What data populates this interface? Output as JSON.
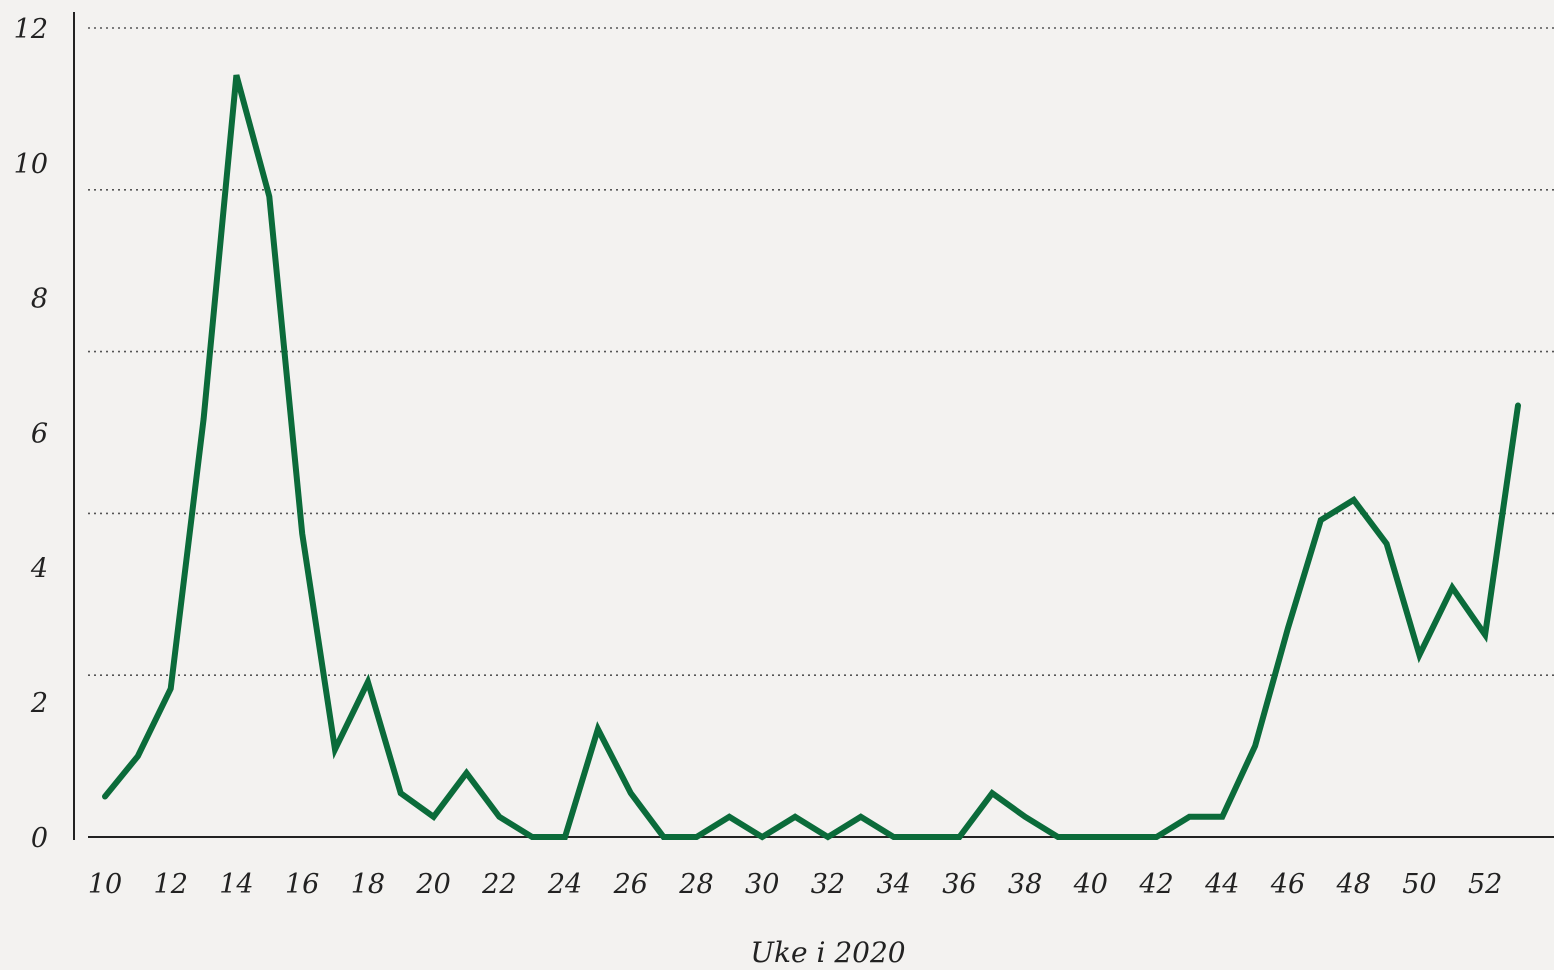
{
  "chart_data": {
    "type": "line",
    "title": "",
    "xlabel": "Uke i 2020",
    "ylabel": "",
    "xlim": [
      10,
      53
    ],
    "ylim": [
      0,
      12
    ],
    "yticks": [
      0,
      2,
      4,
      6,
      8,
      10,
      12
    ],
    "xticks": [
      10,
      12,
      14,
      16,
      18,
      20,
      22,
      24,
      26,
      28,
      30,
      32,
      34,
      36,
      38,
      40,
      42,
      44,
      46,
      48,
      50,
      52
    ],
    "grid": "horizontal dotted",
    "legend": "none",
    "color": "#0b6b3a",
    "series": [
      {
        "x": [
          10,
          11,
          12,
          13,
          14,
          15,
          16,
          17,
          18,
          19,
          20,
          21,
          22,
          23,
          24,
          25,
          26,
          27,
          28,
          29,
          30,
          31,
          32,
          33,
          34,
          35,
          36,
          37,
          38,
          39,
          40,
          41,
          42,
          43,
          44,
          45,
          46,
          47,
          48,
          49,
          50,
          51,
          52,
          53
        ],
        "values": [
          0.6,
          1.2,
          2.2,
          6.2,
          11.3,
          9.5,
          4.5,
          1.3,
          2.3,
          0.65,
          0.3,
          0.95,
          0.3,
          0,
          0,
          1.6,
          0.65,
          0,
          0,
          0.3,
          0,
          0.3,
          0,
          0.3,
          0,
          0,
          0,
          0.65,
          0.3,
          0,
          0,
          0,
          0,
          0.3,
          0.3,
          1.35,
          3.1,
          4.7,
          5.0,
          4.35,
          2.7,
          3.7,
          3.0,
          6.4
        ]
      }
    ]
  }
}
